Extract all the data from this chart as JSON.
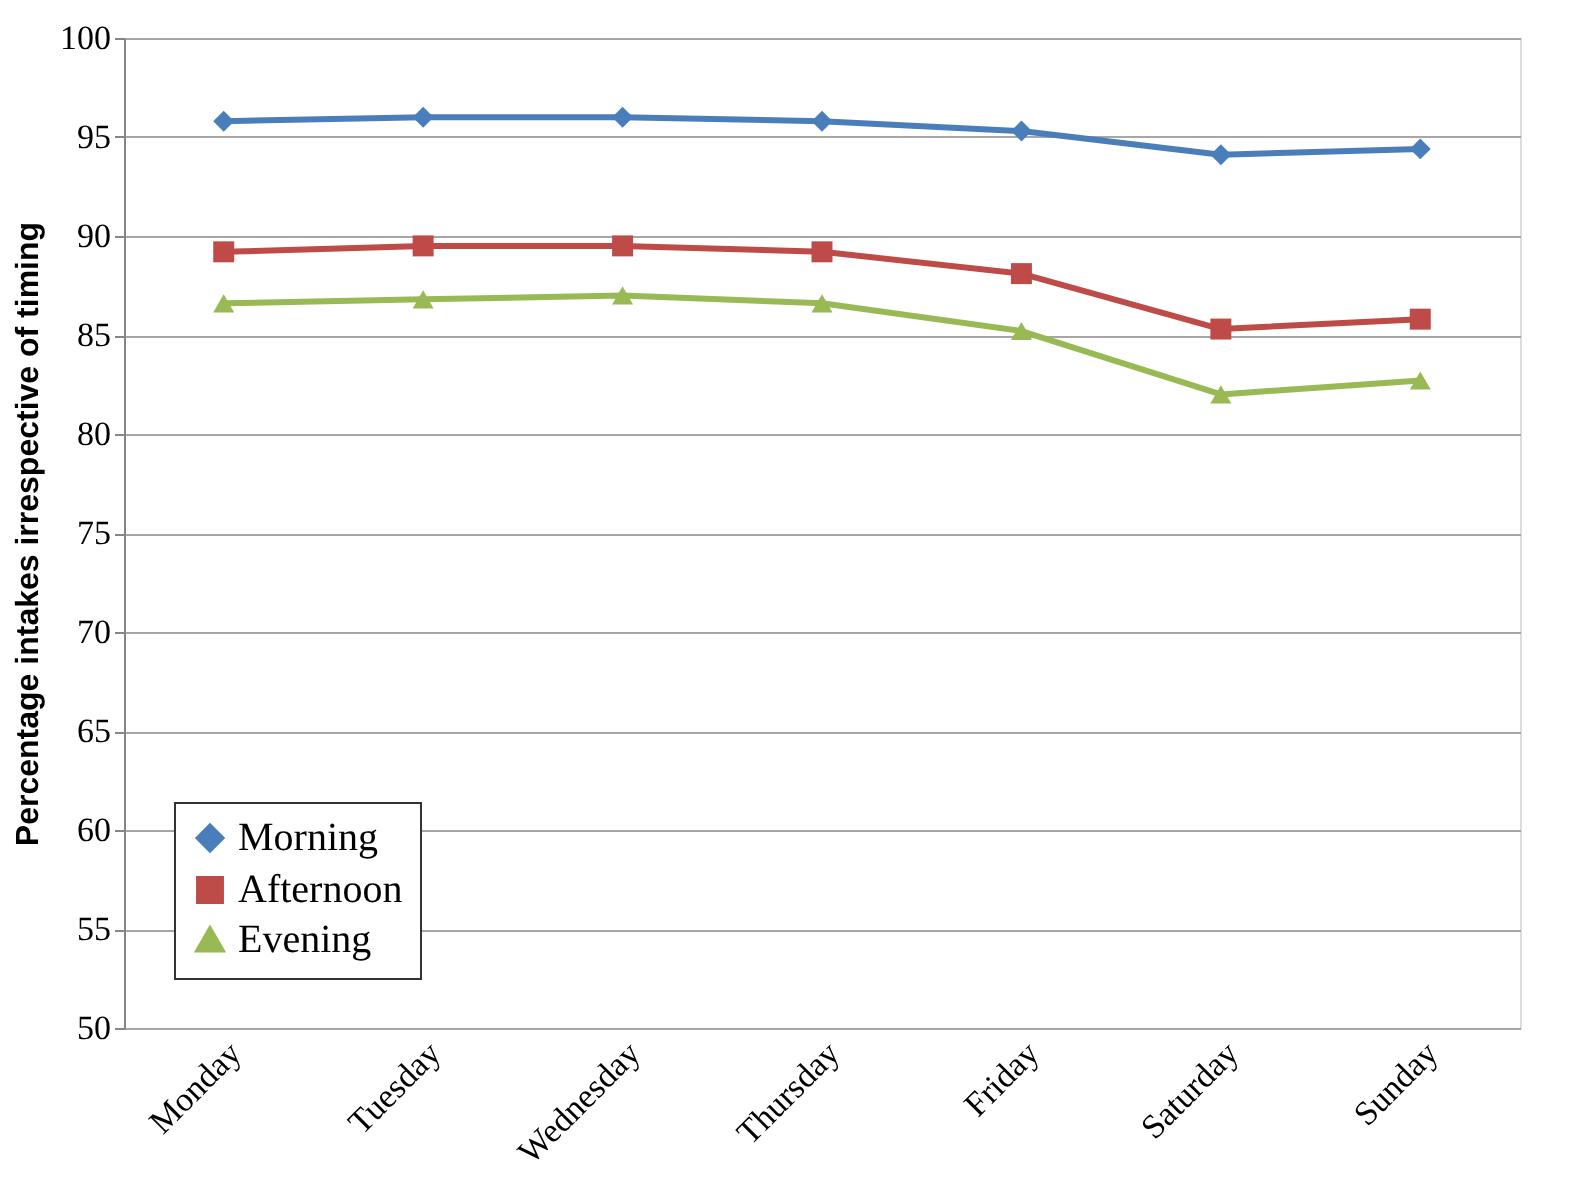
{
  "chart_data": {
    "type": "line",
    "ylabel": "Percentage intakes irrespective of timing",
    "categories": [
      "Monday",
      "Tuesday",
      "Wednesday",
      "Thursday",
      "Friday",
      "Saturday",
      "Sunday"
    ],
    "series": [
      {
        "name": "Morning",
        "color": "#4a7ebb",
        "marker": "diamond",
        "values": [
          95.8,
          96.0,
          96.0,
          95.8,
          95.3,
          94.1,
          94.4
        ]
      },
      {
        "name": "Afternoon",
        "color": "#be4b48",
        "marker": "square",
        "values": [
          89.2,
          89.5,
          89.5,
          89.2,
          88.1,
          85.3,
          85.8
        ]
      },
      {
        "name": "Evening",
        "color": "#98b954",
        "marker": "triangle",
        "values": [
          86.6,
          86.8,
          87.0,
          86.6,
          85.2,
          82.0,
          82.7
        ]
      }
    ],
    "ylim": [
      50,
      100
    ],
    "yticks": [
      50,
      55,
      60,
      65,
      70,
      75,
      80,
      85,
      90,
      95,
      100
    ],
    "grid": "y",
    "legend": "bottom left",
    "line_style": "solid"
  }
}
